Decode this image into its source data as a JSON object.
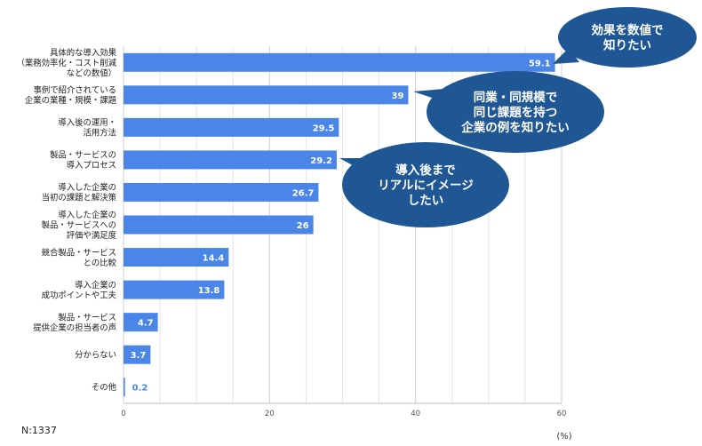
{
  "chart_data": {
    "type": "bar",
    "orientation": "horizontal",
    "categories": [
      "具体的な導入効果\n（業務効率化・コスト削減\nなどの数値）",
      "事例で紹介されている\n企業の業種・規模・課題",
      "導入後の運用・\n活用方法",
      "製品・サービスの\n導入プロセス",
      "導入した企業の\n当初の課題と解決策",
      "導入した企業の\n製品・サービスへの\n評価や満足度",
      "競合製品・サービス\nとの比較",
      "導入企業の\n成功ポイントや工夫",
      "製品・サービス\n提供企業の担当者の声",
      "分からない",
      "その他"
    ],
    "values": [
      59.1,
      39,
      29.5,
      29.2,
      26.7,
      26,
      14.4,
      13.8,
      4.7,
      3.7,
      0.2
    ],
    "value_labels": [
      "59.1",
      "39",
      "29.5",
      "29.2",
      "26.7",
      "26",
      "14.4",
      "13.8",
      "4.7",
      "3.7",
      "0.2"
    ],
    "xlim": [
      0,
      60
    ],
    "x_ticks": [
      "0",
      "20",
      "40",
      "60"
    ],
    "x_unit": "(%)",
    "grid": true,
    "bar_color": "#4a86e8",
    "callouts": [
      {
        "text": "効果を数値で\n知りたい",
        "target": 0
      },
      {
        "text": "同業・同規模で\n同じ課題を持つ\n企業の例を知りたい",
        "target": 1
      },
      {
        "text": "導入後まで\nリアルにイメージ\nしたい",
        "target": 3
      }
    ],
    "callout_color": "#1f5694"
  },
  "footer": {
    "sample_size": "N:1337"
  }
}
